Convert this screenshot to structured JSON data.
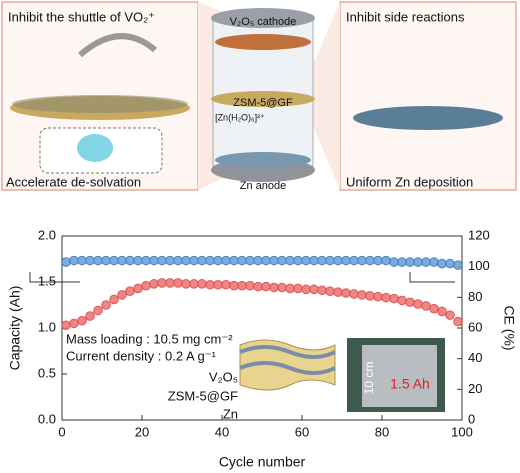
{
  "diagram": {
    "left_title": "Inhibit the shuttle of  VO₂⁺",
    "left_bottom": "Accelerate de-solvation",
    "cathode": "V₂O₅ cathode",
    "separator": "ZSM-5@GF",
    "ion": "[Zn(H₂O)₆]²⁺",
    "anode": "Zn anode",
    "right_title": "Inhibit side reactions",
    "right_bottom": "Uniform Zn deposition"
  },
  "chart_data": {
    "type": "scatter",
    "xlabel": "Cycle number",
    "ylabel": "Capacity (Ah)",
    "y2label": "CE (%)",
    "xlim": [
      0,
      100
    ],
    "xticks": [
      0,
      20,
      40,
      60,
      80,
      100
    ],
    "ylim": [
      0,
      2
    ],
    "yticks": [
      {
        "value": 0,
        "label": "0.0"
      },
      0.5,
      {
        "value": 1,
        "label": "1.0"
      },
      1.5,
      {
        "value": 2,
        "label": "2.0"
      }
    ],
    "y2lim": [
      0,
      120
    ],
    "y2ticks": [
      0,
      20,
      40,
      60,
      80,
      100,
      120
    ],
    "x": [
      1,
      3,
      5,
      7,
      9,
      11,
      13,
      15,
      17,
      19,
      21,
      23,
      25,
      27,
      29,
      31,
      33,
      35,
      37,
      39,
      41,
      43,
      45,
      47,
      49,
      51,
      53,
      55,
      57,
      59,
      61,
      63,
      65,
      67,
      69,
      71,
      73,
      75,
      77,
      79,
      81,
      83,
      85,
      87,
      89,
      91,
      93,
      95,
      97,
      99
    ],
    "series": [
      {
        "color": "#f07878",
        "values": [
          1.03,
          1.05,
          1.08,
          1.13,
          1.19,
          1.25,
          1.31,
          1.36,
          1.4,
          1.43,
          1.46,
          1.48,
          1.49,
          1.49,
          1.49,
          1.48,
          1.48,
          1.48,
          1.47,
          1.47,
          1.47,
          1.46,
          1.46,
          1.46,
          1.45,
          1.45,
          1.44,
          1.44,
          1.43,
          1.43,
          1.42,
          1.42,
          1.41,
          1.4,
          1.39,
          1.38,
          1.37,
          1.36,
          1.35,
          1.34,
          1.33,
          1.32,
          1.3,
          1.28,
          1.26,
          1.24,
          1.21,
          1.18,
          1.14,
          1.07
        ]
      },
      {
        "color": "#6fa3dc",
        "axis": "y2",
        "values": [
          103,
          104,
          104,
          104,
          104,
          104,
          104,
          104,
          104,
          104,
          104,
          104,
          104,
          104,
          104,
          104,
          104,
          104,
          104,
          104,
          104,
          104,
          104,
          104,
          104,
          104,
          104,
          104,
          104,
          104,
          104,
          104,
          104,
          104,
          104,
          104,
          104,
          104,
          104,
          104,
          104,
          103,
          103,
          103,
          103,
          103,
          103,
          102,
          102,
          101
        ]
      }
    ],
    "annotations": [
      "Mass loading : 10.5 mg cm⁻²",
      "Current density : 0.2 A g⁻¹",
      "V₂O₅",
      "ZSM-5@GF",
      "Zn",
      "10 cm",
      "1.5 Ah"
    ]
  }
}
